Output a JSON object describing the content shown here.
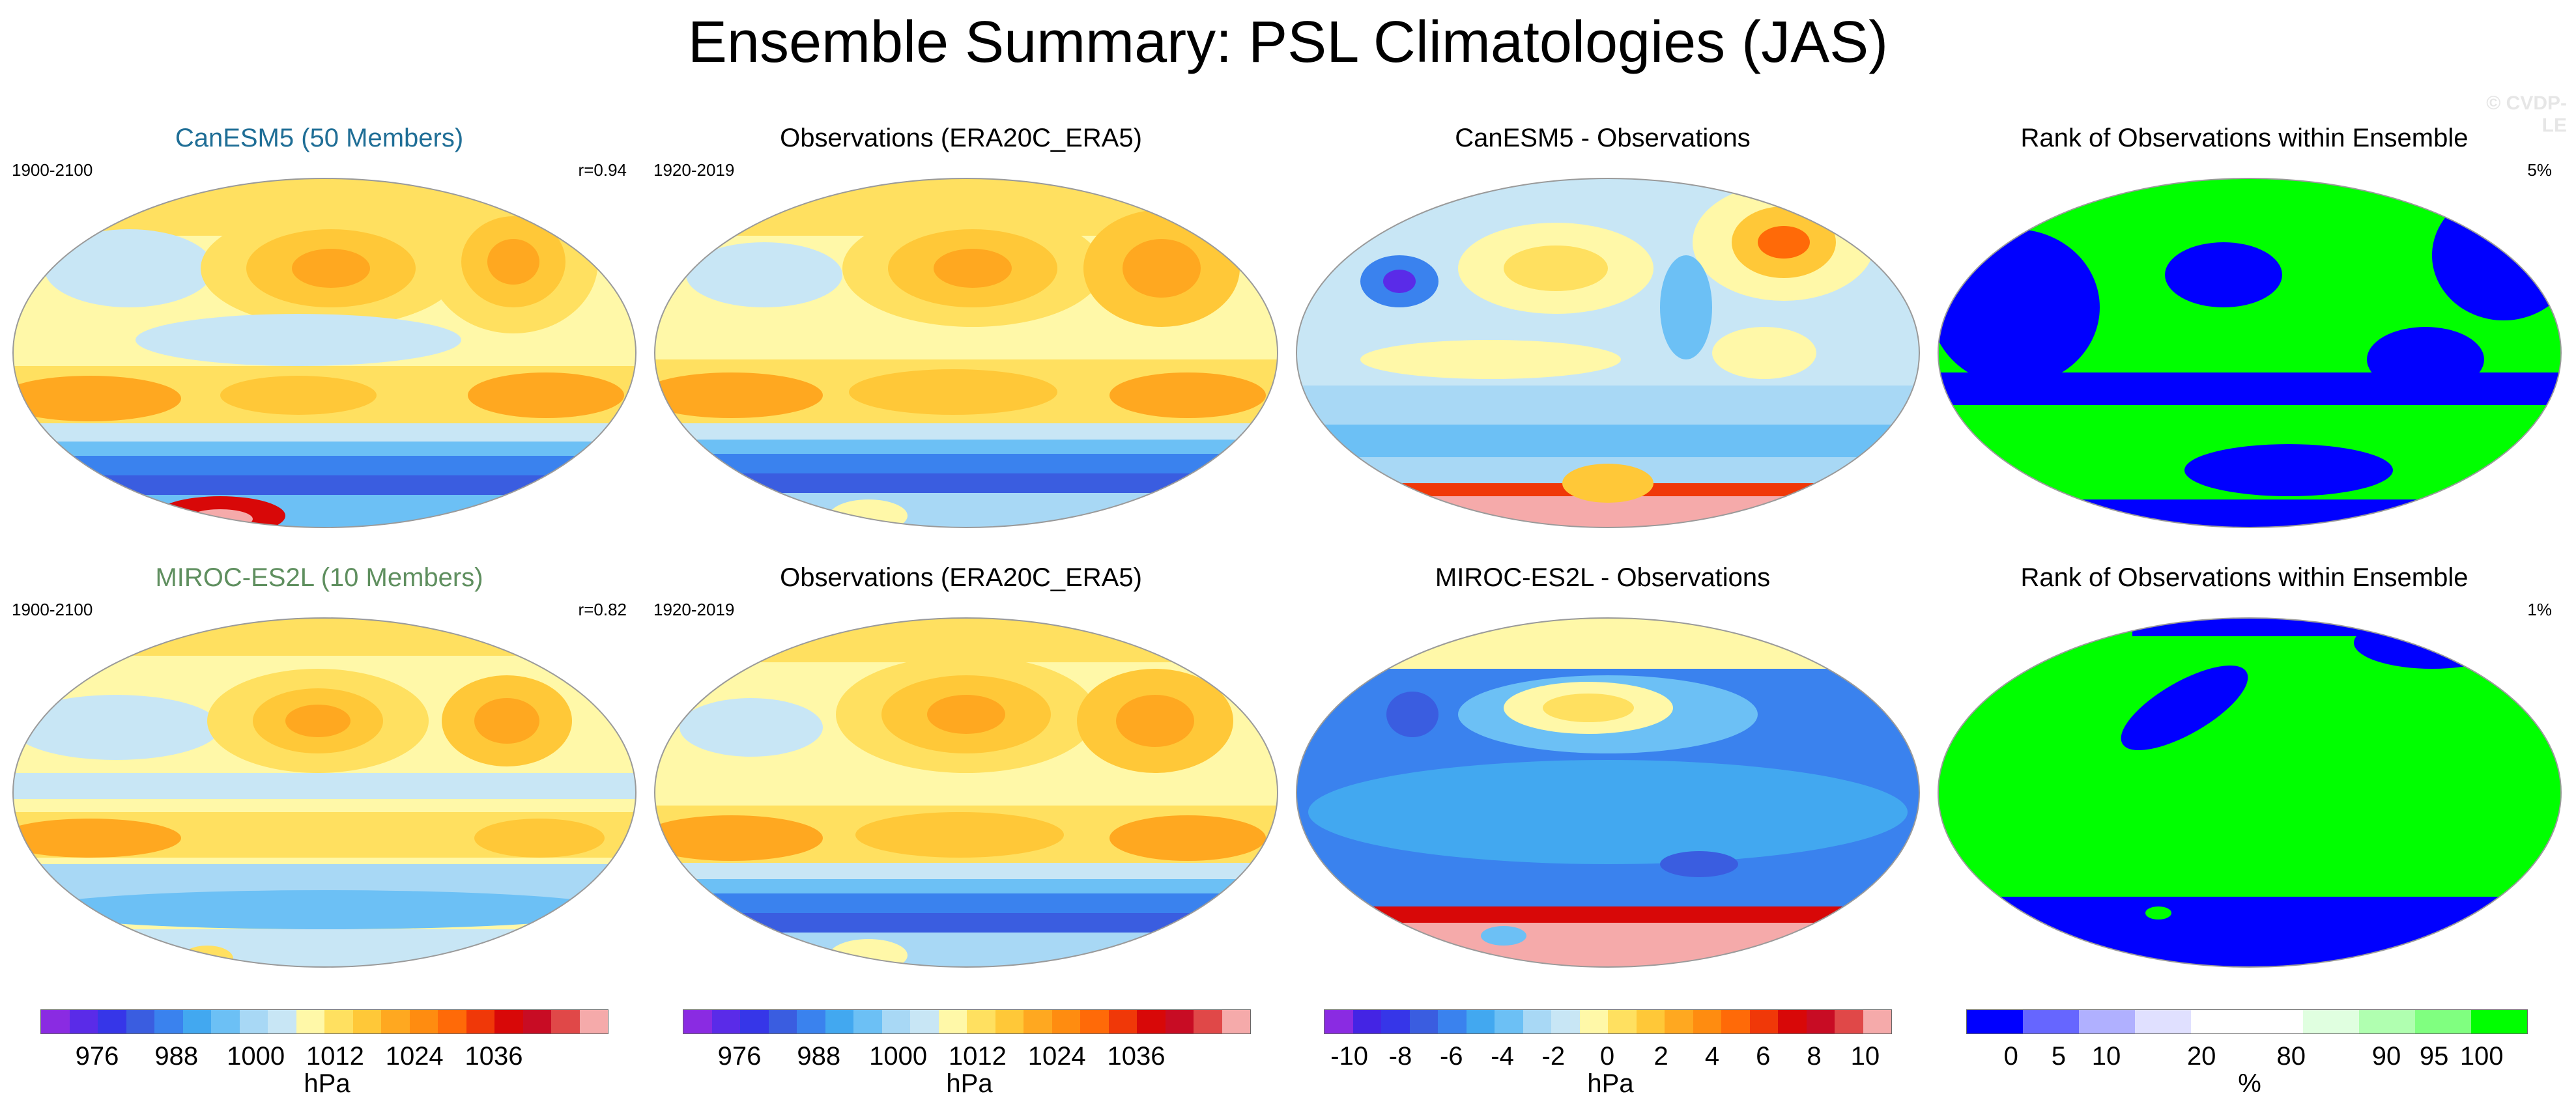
{
  "header": {
    "title": "Ensemble Summary: PSL Climatologies (JAS)",
    "watermark": "© CVDP-LE"
  },
  "colors": {
    "model1_title": "#1f6e96",
    "model2_title": "#5f8f5f",
    "psl_scale": [
      "#8a2be2",
      "#5a2be8",
      "#3636e8",
      "#3a5de0",
      "#3a82ee",
      "#42a8f0",
      "#6cc0f5",
      "#a8d8f5",
      "#c8e6f5",
      "#fff8a8",
      "#ffe060",
      "#ffc838",
      "#ffa820",
      "#ff8c10",
      "#ff6a08",
      "#f03808",
      "#d80808",
      "#c80c24",
      "#e04848",
      "#f5aaaa"
    ],
    "diff_scale": [
      "#8a2be2",
      "#4424e4",
      "#3636e8",
      "#3a5de0",
      "#3a82ee",
      "#42a8f0",
      "#6cc0f5",
      "#a8d8f5",
      "#c8e6f5",
      "#fff8a8",
      "#ffe060",
      "#ffc838",
      "#ffa820",
      "#ff8c10",
      "#ff6a08",
      "#f03808",
      "#d80808",
      "#c80c24",
      "#e04848",
      "#f5aaaa"
    ],
    "rank_scale": [
      "#0000ff",
      "#6666ff",
      "#b0b0ff",
      "#e0e0ff",
      "#ffffff",
      "#ffffff",
      "#e0ffe0",
      "#b0ffb0",
      "#80ff80",
      "#00ff00"
    ]
  },
  "panels": [
    {
      "title": "CanESM5 (50 Members)",
      "left": "1900-2100",
      "right": "r=0.94",
      "kind": "psl"
    },
    {
      "title": "Observations (ERA20C_ERA5)",
      "left": "1920-2019",
      "right": "",
      "kind": "psl"
    },
    {
      "title": "CanESM5 - Observations",
      "left": "",
      "right": "",
      "kind": "diff"
    },
    {
      "title": "Rank of Observations within Ensemble",
      "left": "",
      "right": "5%",
      "kind": "rank"
    },
    {
      "title": "MIROC-ES2L (10 Members)",
      "left": "1900-2100",
      "right": "r=0.82",
      "kind": "psl"
    },
    {
      "title": "Observations (ERA20C_ERA5)",
      "left": "1920-2019",
      "right": "",
      "kind": "psl"
    },
    {
      "title": "MIROC-ES2L - Observations",
      "left": "",
      "right": "",
      "kind": "diff"
    },
    {
      "title": "Rank of Observations within Ensemble",
      "left": "",
      "right": "1%",
      "kind": "rank"
    }
  ],
  "colorbars": [
    {
      "labels": [
        "976",
        "988",
        "1000",
        "1012",
        "1024",
        "1036"
      ],
      "unit": "hPa"
    },
    {
      "labels": [
        "976",
        "988",
        "1000",
        "1012",
        "1024",
        "1036"
      ],
      "unit": "hPa"
    },
    {
      "labels": [
        "-10",
        "-8",
        "-6",
        "-4",
        "-2",
        "0",
        "2",
        "4",
        "6",
        "8",
        "10"
      ],
      "unit": "hPa"
    },
    {
      "labels": [
        "0",
        "5",
        "10",
        "20",
        "80",
        "90",
        "95",
        "100"
      ],
      "unit": "%"
    }
  ]
}
